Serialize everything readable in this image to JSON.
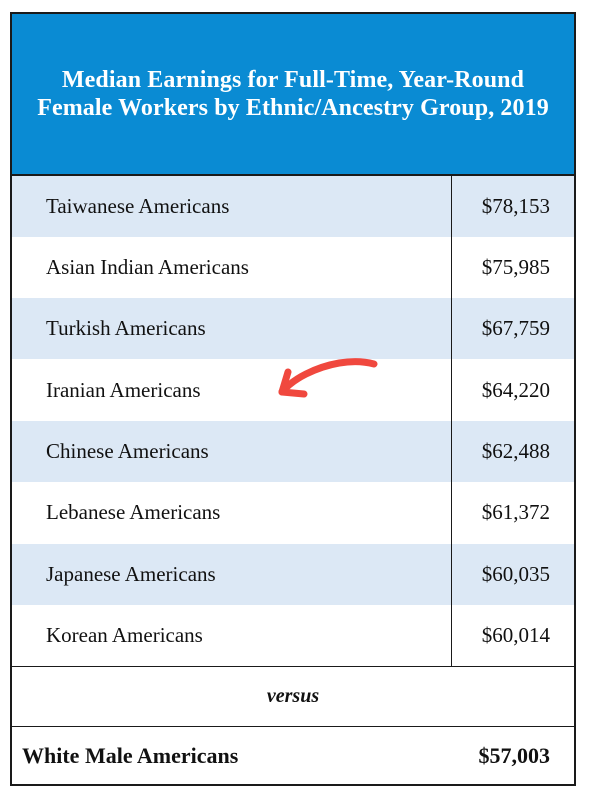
{
  "table": {
    "title": "Median Earnings for Full-Time, Year-Round Female Workers by Ethnic/Ancestry Group, 2019",
    "rows": [
      {
        "group": "Taiwanese Americans",
        "earnings": "$78,153"
      },
      {
        "group": "Asian Indian Americans",
        "earnings": "$75,985"
      },
      {
        "group": "Turkish Americans",
        "earnings": "$67,759"
      },
      {
        "group": "Iranian Americans",
        "earnings": "$64,220"
      },
      {
        "group": "Chinese Americans",
        "earnings": "$62,488"
      },
      {
        "group": "Lebanese Americans",
        "earnings": "$61,372"
      },
      {
        "group": "Japanese Americans",
        "earnings": "$60,035"
      },
      {
        "group": "Korean Americans",
        "earnings": "$60,014"
      }
    ],
    "versus_label": "versus",
    "comparison": {
      "group": "White Male Americans",
      "earnings": "$57,003"
    }
  },
  "annotation": {
    "icon": "hand-drawn-arrow-icon",
    "points_to_row": "Iranian Americans",
    "color": "#f0483e"
  },
  "colors": {
    "header_bg": "#0a8bd3",
    "header_text": "#ffffff",
    "row_shade": "#dce8f5",
    "border": "#1a1a1a"
  }
}
